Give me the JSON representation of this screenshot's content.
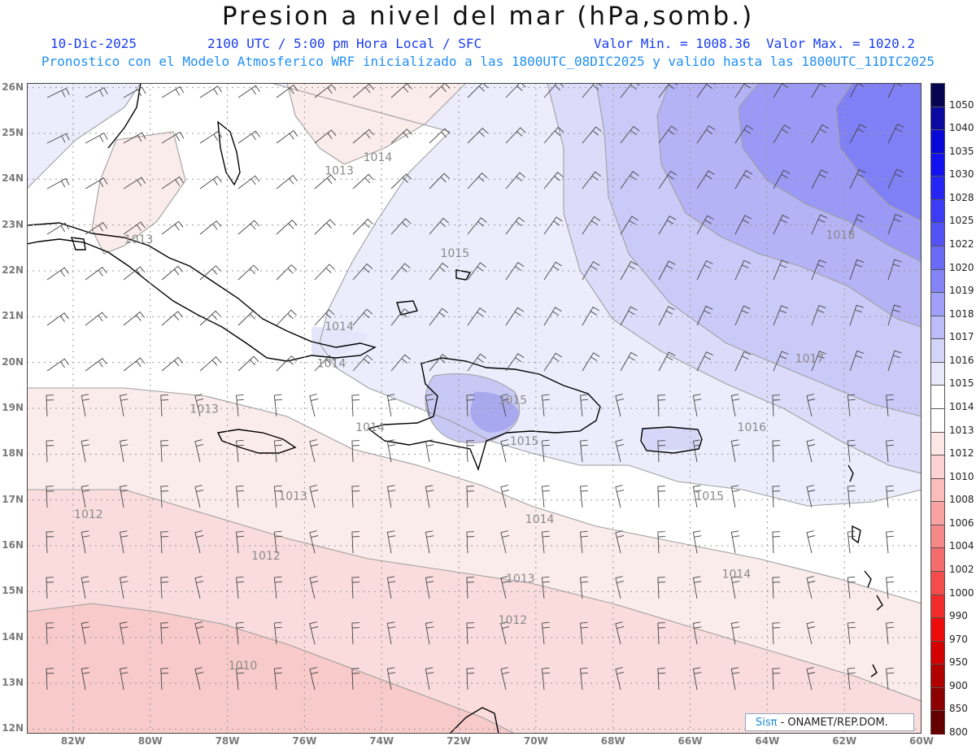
{
  "header": {
    "title": "Presion a nivel del mar (hPa,somb.)",
    "date": "10-Dic-2025",
    "time": "2100 UTC / 5:00 pm Hora Local / SFC",
    "valmin": "Valor Min. = 1008.36",
    "valmax": "Valor Max. = 1020.2",
    "subtitle": "Pronostico con el Modelo Atmosferico WRF inicializado a las 1800UTC_08DIC2025 y valido hasta las  1800UTC_11DIC2025"
  },
  "map": {
    "lon_range": [
      -83.2,
      -60
    ],
    "lat_range": [
      11.9,
      26.1
    ],
    "y_ticks": [
      "26N",
      "25N",
      "24N",
      "23N",
      "22N",
      "21N",
      "20N",
      "19N",
      "18N",
      "17N",
      "16N",
      "15N",
      "14N",
      "13N",
      "12N"
    ],
    "x_ticks": [
      "82W",
      "80W",
      "78W",
      "76W",
      "74W",
      "72W",
      "70W",
      "68W",
      "66W",
      "64W",
      "62W",
      "60W"
    ],
    "contour_labels": [
      {
        "text": "1014",
        "lon": -74.1,
        "lat": 24.4
      },
      {
        "text": "1013",
        "lon": -75.1,
        "lat": 24.1
      },
      {
        "text": "1013",
        "lon": -80.3,
        "lat": 22.6
      },
      {
        "text": "1015",
        "lon": -72.1,
        "lat": 22.3
      },
      {
        "text": "1018",
        "lon": -62.1,
        "lat": 22.7
      },
      {
        "text": "1014",
        "lon": -75.1,
        "lat": 20.7
      },
      {
        "text": "1014",
        "lon": -75.3,
        "lat": 19.9
      },
      {
        "text": "1017",
        "lon": -62.9,
        "lat": 20.0
      },
      {
        "text": "1013",
        "lon": -78.6,
        "lat": 18.9
      },
      {
        "text": "1014",
        "lon": -74.3,
        "lat": 18.5
      },
      {
        "text": "1015",
        "lon": -70.6,
        "lat": 19.1
      },
      {
        "text": "1015",
        "lon": -70.3,
        "lat": 18.2
      },
      {
        "text": "1016",
        "lon": -64.4,
        "lat": 18.5
      },
      {
        "text": "1013",
        "lon": -76.3,
        "lat": 17.0
      },
      {
        "text": "1012",
        "lon": -81.6,
        "lat": 16.6
      },
      {
        "text": "1015",
        "lon": -65.5,
        "lat": 17.0
      },
      {
        "text": "1014",
        "lon": -69.9,
        "lat": 16.5
      },
      {
        "text": "1012",
        "lon": -77.0,
        "lat": 15.7
      },
      {
        "text": "1013",
        "lon": -70.4,
        "lat": 15.2
      },
      {
        "text": "1014",
        "lon": -64.8,
        "lat": 15.3
      },
      {
        "text": "1012",
        "lon": -70.6,
        "lat": 14.3
      },
      {
        "text": "1010",
        "lon": -77.6,
        "lat": 13.3
      }
    ]
  },
  "colorbar": {
    "labels": [
      "1050",
      "1040",
      "1035",
      "1030",
      "1028",
      "1025",
      "1022",
      "1020",
      "1019",
      "1018",
      "1017",
      "1016",
      "1015",
      "1014",
      "1013",
      "1012",
      "1010",
      "1008",
      "1006",
      "1004",
      "1002",
      "1000",
      "990",
      "970",
      "950",
      "900",
      "850",
      "800"
    ],
    "colors": [
      "#050552",
      "#0a0aa0",
      "#0808d8",
      "#1212f0",
      "#2525f5",
      "#3c3cf6",
      "#5252f7",
      "#6a6af8",
      "#8484f8",
      "#a0a0f8",
      "#bcbcf9",
      "#d4d4fa",
      "#e8e8fb",
      "#ffffff",
      "#ffffff",
      "#fde6e6",
      "#fcd2d2",
      "#fbbcbc",
      "#f9a2a2",
      "#f78888",
      "#f56c6c",
      "#f44c4c",
      "#f22a2a",
      "#ec0a0a",
      "#d40000",
      "#b00000",
      "#8c0000",
      "#640000"
    ]
  },
  "credit": {
    "brand": "Sisπ",
    "org": "- ONAMET/REP.DOM."
  }
}
